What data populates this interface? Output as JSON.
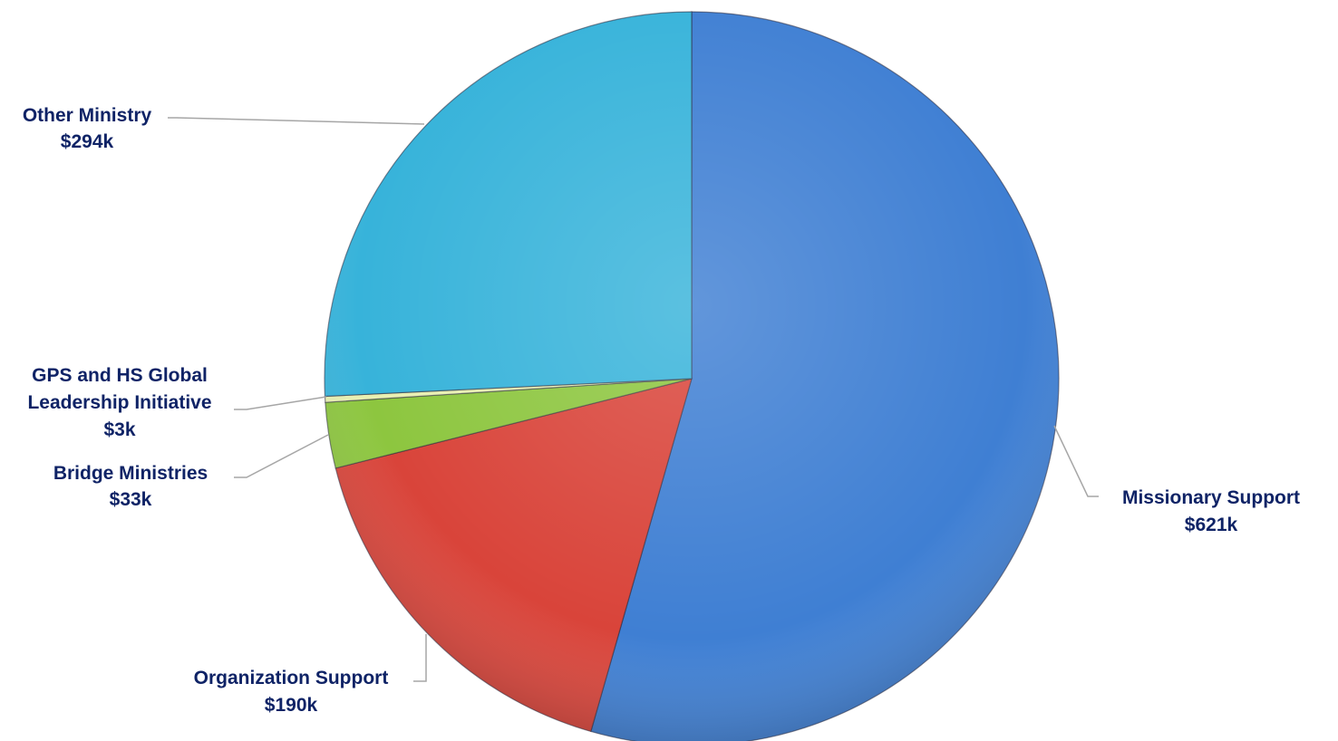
{
  "chart_data": {
    "type": "pie",
    "start_angle_deg": 0,
    "direction": "clockwise",
    "slices": [
      {
        "name": "Missionary Support",
        "value": 621,
        "value_label": "$621k",
        "color": "#3f7fd3"
      },
      {
        "name": "Organization Support",
        "value": 190,
        "value_label": "$190k",
        "color": "#d9443a"
      },
      {
        "name": "Bridge Ministries",
        "value": 33,
        "value_label": "$33k",
        "color": "#8dc63f"
      },
      {
        "name": "GPS and HS Global Leadership Initiative",
        "name_lines": [
          "GPS and HS Global",
          "Leadership Initiative"
        ],
        "value": 3,
        "value_label": "$3k",
        "color": "#e9f0b2"
      },
      {
        "name": "Other Ministry",
        "value": 294,
        "value_label": "$294k",
        "color": "#37b3da"
      }
    ],
    "value_unit": "thousand USD",
    "legend": "none",
    "data_labels": "outside with leader lines"
  }
}
